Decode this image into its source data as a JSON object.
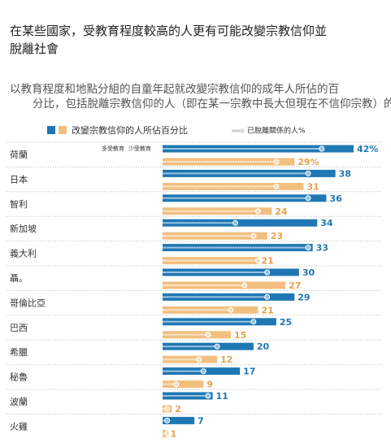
{
  "chart_data": {
    "type": "paired-bar",
    "title": "在某些國家，受教育程度較高的人更有可能改變宗教信仰並脫離社會",
    "subtitle": "以教育程度和地點分組的自童年起就改變宗教信仰的成年人所佔的百分比，包括脫離宗教信仰的人（即在某一宗教中長大但現在不信仰宗教）的比例",
    "legend": {
      "bars": "改變宗教信仰的人所佔百分比",
      "dots": "已脫離關係的人%"
    },
    "categories": [
      "荷蘭",
      "日本",
      "智利",
      "新加坡",
      "義大利",
      "聶。",
      "哥倫比亞",
      "巴西",
      "希臘",
      "秘魯",
      "波蘭",
      "火雞"
    ],
    "xlim": [
      0,
      42
    ],
    "series": [
      {
        "name": "多受教育",
        "color": "#1f77b4",
        "values": [
          42,
          38,
          36,
          34,
          33,
          30,
          29,
          25,
          20,
          17,
          11,
          7
        ],
        "value_labels": [
          "42%",
          "38",
          "36",
          "34",
          "33",
          "30",
          "29",
          "25",
          "20",
          "17",
          "11",
          "7"
        ],
        "disaffiliated": [
          35,
          32,
          32,
          16,
          32,
          23,
          23,
          20,
          12,
          9,
          10,
          1
        ]
      },
      {
        "name": "少受教育",
        "color": "#f2bf7f",
        "values": [
          29,
          31,
          24,
          23,
          21,
          27,
          21,
          15,
          12,
          9,
          2,
          1
        ],
        "value_labels": [
          "29%",
          "31",
          "24",
          "23",
          "21",
          "27",
          "21",
          "15",
          "12",
          "9",
          "2",
          "1"
        ],
        "disaffiliated": [
          25,
          25,
          21,
          20,
          21,
          18,
          15,
          10,
          8,
          3,
          1,
          1
        ]
      }
    ]
  }
}
